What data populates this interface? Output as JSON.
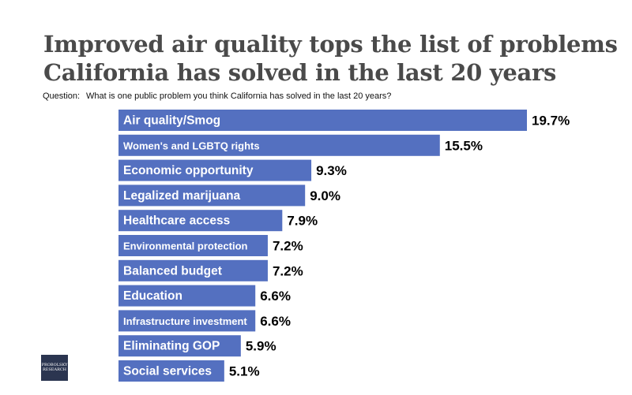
{
  "title_lines": [
    "Improved air quality tops the list of problems",
    "California has solved in the last 20 years"
  ],
  "question_label": "Question:",
  "question_text": "What is one public problem you think California has solved in the last 20 years?",
  "logo_text": "PROBOLSKY RESEARCH",
  "chart_data": {
    "type": "bar",
    "orientation": "horizontal",
    "categories": [
      "Air quality/Smog",
      "Women's and LGBTQ rights",
      "Economic opportunity",
      "Legalized marijuana",
      "Healthcare access",
      "Environmental protection",
      "Balanced budget",
      "Education",
      "Infrastructure investment",
      "Eliminating GOP",
      "Social services"
    ],
    "values": [
      19.7,
      15.5,
      9.3,
      9.0,
      7.9,
      7.2,
      7.2,
      6.6,
      6.6,
      5.9,
      5.1
    ],
    "value_labels": [
      "19.7%",
      "15.5%",
      "9.3%",
      "9.0%",
      "7.9%",
      "7.2%",
      "7.2%",
      "6.6%",
      "6.6%",
      "5.9%",
      "5.1%"
    ],
    "bar_color": "#5470c0",
    "grid": false
  }
}
